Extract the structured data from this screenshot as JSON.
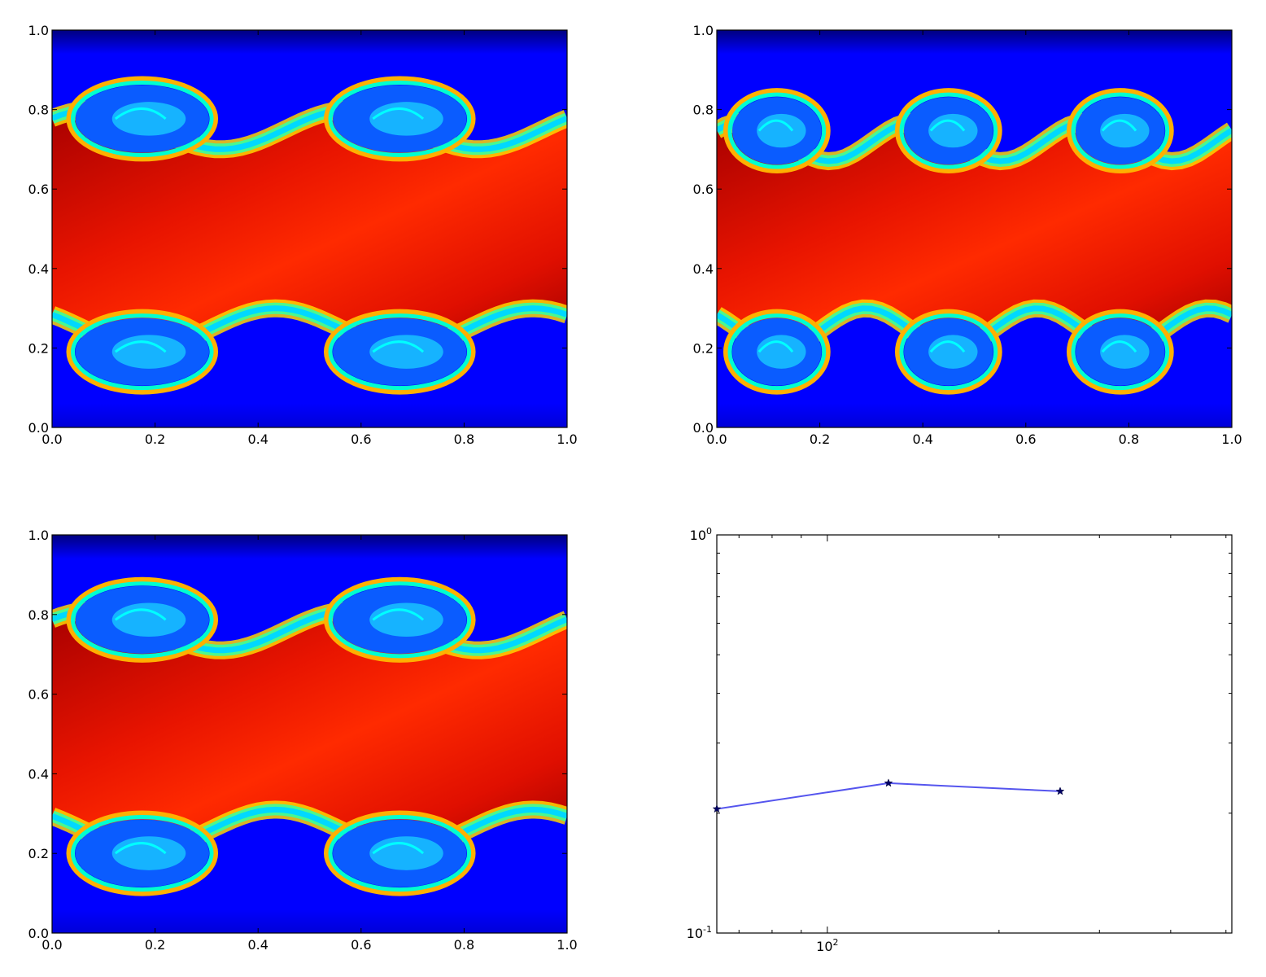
{
  "colors": {
    "jet_dark_blue": "#00007f",
    "jet_blue": "#0000ff",
    "jet_cyan": "#00ffff",
    "jet_yellow": "#ffff00",
    "jet_red": "#ff0000",
    "jet_dark_red": "#7f0000",
    "line_blue": "#5555ee",
    "marker_navy": "#000066"
  },
  "chart_data": [
    {
      "type": "heatmap",
      "panel": "top-left",
      "colormap": "jet",
      "xlim": [
        0,
        1
      ],
      "ylim": [
        0,
        1
      ],
      "xticks": [
        "0.0",
        "0.2",
        "0.4",
        "0.6",
        "0.8",
        "1.0"
      ],
      "yticks": [
        "0.0",
        "0.2",
        "0.4",
        "0.6",
        "0.8",
        "1.0"
      ],
      "interface_upper_y": 0.75,
      "interface_lower_y": 0.25,
      "vortex_count_per_interface": 2,
      "title": "",
      "xlabel": "",
      "ylabel": ""
    },
    {
      "type": "heatmap",
      "panel": "top-right",
      "colormap": "jet",
      "xlim": [
        0,
        1
      ],
      "ylim": [
        0,
        1
      ],
      "xticks": [
        "0.0",
        "0.2",
        "0.4",
        "0.6",
        "0.8",
        "1.0"
      ],
      "yticks": [
        "0.0",
        "0.2",
        "0.4",
        "0.6",
        "0.8",
        "1.0"
      ],
      "interface_upper_y": 0.72,
      "interface_lower_y": 0.25,
      "vortex_count_per_interface": 3,
      "title": "",
      "xlabel": "",
      "ylabel": ""
    },
    {
      "type": "heatmap",
      "panel": "bottom-left",
      "colormap": "jet",
      "xlim": [
        0,
        1
      ],
      "ylim": [
        0,
        1
      ],
      "xticks": [
        "0.0",
        "0.2",
        "0.4",
        "0.6",
        "0.8",
        "1.0"
      ],
      "yticks": [
        "0.0",
        "0.2",
        "0.4",
        "0.6",
        "0.8",
        "1.0"
      ],
      "interface_upper_y": 0.76,
      "interface_lower_y": 0.26,
      "vortex_count_per_interface": 2,
      "title": "",
      "xlabel": "",
      "ylabel": ""
    },
    {
      "type": "line",
      "panel": "bottom-right",
      "xscale": "log",
      "yscale": "log",
      "xlim": [
        64,
        512
      ],
      "ylim": [
        0.1,
        1.0
      ],
      "xtick_labels": [
        {
          "value": 100,
          "base": "10",
          "exp": "2"
        }
      ],
      "ytick_labels": [
        {
          "value": 1.0,
          "base": "10",
          "exp": "0"
        },
        {
          "value": 0.1,
          "base": "10",
          "exp": "-1"
        }
      ],
      "series": [
        {
          "x": [
            64,
            128,
            256
          ],
          "y": [
            0.205,
            0.238,
            0.227
          ],
          "marker": "star",
          "color": "#5555ee"
        }
      ],
      "grid": false,
      "title": "",
      "xlabel": "",
      "ylabel": ""
    }
  ]
}
